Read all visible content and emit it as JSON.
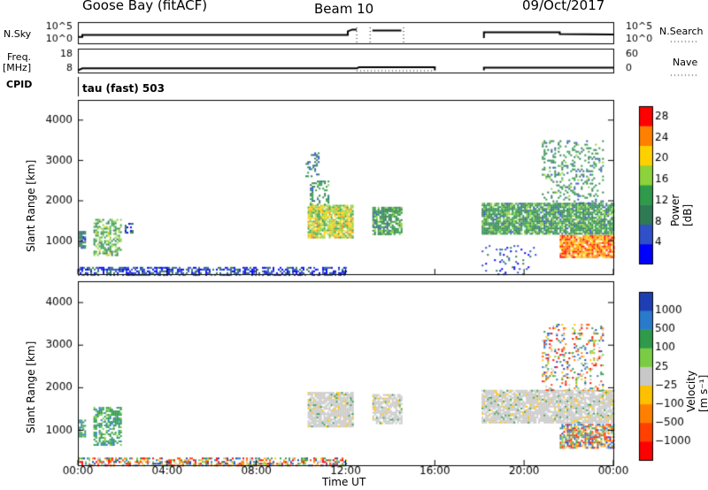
{
  "header": {
    "station": "Goose Bay (fitACF)",
    "beam": "Beam 10",
    "date": "09/Oct/2017"
  },
  "panel_labels": {
    "nsky": "N.Sky",
    "nsearch": "N.Search",
    "freq": "Freq.",
    "freq_unit": "[MHz]",
    "nave": "Nave",
    "cpid": "CPID",
    "cpid_value": "tau (fast) 503"
  },
  "chart_data": [
    {
      "type": "line",
      "name": "noise",
      "y_ticks_left": [
        "10^5",
        "10^0"
      ],
      "y_ticks_right": [
        "10^5",
        "10^0"
      ],
      "segments": [
        {
          "x": [
            0,
            0.2,
            0.2,
            12.1,
            12.1,
            12.3,
            12.5
          ],
          "y": [
            1.8,
            1.8,
            2.4,
            2.4,
            3.4,
            3.9,
            3.9
          ]
        },
        {
          "x": [
            13.2,
            14.5
          ],
          "y": [
            3.6,
            3.6
          ]
        },
        {
          "x": [
            18.2,
            18.2,
            21.6,
            21.6,
            24
          ],
          "y": [
            1.5,
            3.1,
            3.1,
            2.6,
            2.5
          ]
        }
      ]
    },
    {
      "type": "line",
      "name": "freq_nave",
      "y_ticks_left": [
        "18",
        "8"
      ],
      "y_ticks_right": [
        "60",
        "0"
      ],
      "segments": [
        {
          "x": [
            0,
            0.2,
            12.5,
            12.6,
            16.0,
            16.0
          ],
          "y": [
            8.0,
            8.9,
            8.9,
            9.4,
            9.4,
            8.0
          ]
        },
        {
          "x": [
            18.2,
            18.2,
            24
          ],
          "y": [
            8.0,
            9.2,
            9.2
          ]
        }
      ]
    },
    {
      "type": "heatmap",
      "name": "power",
      "xlabel": "",
      "ylabel": "Slant Range [km]",
      "xlim": [
        0,
        24
      ],
      "ylim": [
        180,
        4500
      ],
      "y_ticks": [
        1000,
        2000,
        3000,
        4000
      ],
      "colorbar": {
        "label": "Power [dB]",
        "ticks": [
          4,
          8,
          12,
          16,
          20,
          24,
          28
        ],
        "range": [
          0,
          30
        ],
        "colors": [
          "#0000ff",
          "#3050c8",
          "#2f7a55",
          "#2e9a4a",
          "#8cd23a",
          "#ffd000",
          "#ff8000",
          "#ff0000"
        ]
      },
      "regions": [
        {
          "x0": 0.0,
          "x1": 12.0,
          "r0": 180,
          "r1": 360,
          "v": 5,
          "d": 0.55
        },
        {
          "x0": 0.05,
          "x1": 0.35,
          "r0": 850,
          "r1": 1250,
          "v": 8,
          "d": 0.8
        },
        {
          "x0": 0.7,
          "x1": 1.9,
          "r0": 650,
          "r1": 1550,
          "v": 14,
          "d": 0.55
        },
        {
          "x0": 2.1,
          "x1": 2.5,
          "r0": 1200,
          "r1": 1450,
          "v": 6,
          "d": 0.3
        },
        {
          "x0": 10.3,
          "x1": 12.3,
          "r0": 1100,
          "r1": 1900,
          "v": 18,
          "d": 0.85
        },
        {
          "x0": 10.4,
          "x1": 11.2,
          "r0": 1900,
          "r1": 2500,
          "v": 11,
          "d": 0.35
        },
        {
          "x0": 10.2,
          "x1": 10.8,
          "r0": 2600,
          "r1": 3200,
          "v": 9,
          "d": 0.25
        },
        {
          "x0": 13.2,
          "x1": 14.5,
          "r0": 1150,
          "r1": 1850,
          "v": 12,
          "d": 0.75
        },
        {
          "x0": 18.1,
          "x1": 24.0,
          "r0": 1200,
          "r1": 1950,
          "v": 12,
          "d": 0.85
        },
        {
          "x0": 21.6,
          "x1": 24.0,
          "r0": 600,
          "r1": 1150,
          "v": 24,
          "d": 0.85
        },
        {
          "x0": 20.8,
          "x1": 23.5,
          "r0": 1950,
          "r1": 3500,
          "v": 11,
          "d": 0.22
        },
        {
          "x0": 18.1,
          "x1": 20.5,
          "r0": 180,
          "r1": 900,
          "v": 6,
          "d": 0.1
        }
      ]
    },
    {
      "type": "heatmap",
      "name": "velocity",
      "xlabel": "Time UT",
      "ylabel": "Slant Range [km]",
      "xlim": [
        0,
        24
      ],
      "ylim": [
        180,
        4500
      ],
      "y_ticks": [
        1000,
        2000,
        3000,
        4000
      ],
      "x_ticks": [
        "00:00",
        "04:00",
        "08:00",
        "12:00",
        "16:00",
        "20:00",
        "00:00"
      ],
      "colorbar": {
        "label": "Velocity [m s⁻¹]",
        "ticks": [
          "1000",
          "500",
          "100",
          "25",
          "−25",
          "−100",
          "−500",
          "−1000"
        ],
        "colors": [
          "#1e3fb4",
          "#2a7acc",
          "#2e9a4a",
          "#7acc44",
          "#c8c8c8",
          "#ffc000",
          "#ff8000",
          "#ff4000",
          "#ff0000"
        ]
      },
      "regions": [
        {
          "x0": 0.0,
          "x1": 12.0,
          "r0": 180,
          "r1": 360,
          "v": "mix",
          "d": 0.55
        },
        {
          "x0": 0.05,
          "x1": 0.35,
          "r0": 850,
          "r1": 1250,
          "v": "green",
          "d": 0.8
        },
        {
          "x0": 0.7,
          "x1": 1.9,
          "r0": 650,
          "r1": 1550,
          "v": "green",
          "d": 0.55
        },
        {
          "x0": 10.3,
          "x1": 12.3,
          "r0": 1100,
          "r1": 1900,
          "v": "gray",
          "d": 0.85
        },
        {
          "x0": 13.2,
          "x1": 14.5,
          "r0": 1150,
          "r1": 1850,
          "v": "gray",
          "d": 0.75
        },
        {
          "x0": 18.1,
          "x1": 24.0,
          "r0": 1200,
          "r1": 1950,
          "v": "gray",
          "d": 0.85
        },
        {
          "x0": 21.6,
          "x1": 24.0,
          "r0": 600,
          "r1": 1150,
          "v": "mix",
          "d": 0.7
        },
        {
          "x0": 20.8,
          "x1": 23.5,
          "r0": 1950,
          "r1": 3500,
          "v": "mix",
          "d": 0.22
        }
      ]
    }
  ]
}
